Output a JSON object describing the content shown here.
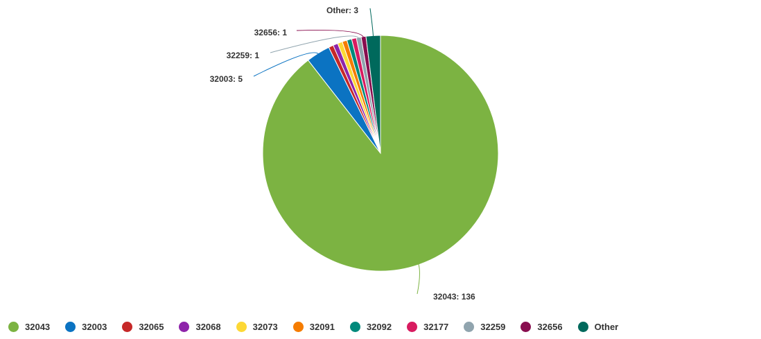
{
  "chart_data": {
    "type": "pie",
    "slices": [
      {
        "label": "32043",
        "value": 136,
        "color": "#7cb342",
        "data_label": "32043: 136"
      },
      {
        "label": "32003",
        "value": 5,
        "color": "#0b73c2",
        "data_label": "32003: 5"
      },
      {
        "label": "32065",
        "value": 1,
        "color": "#c62828",
        "data_label": ""
      },
      {
        "label": "32068",
        "value": 1,
        "color": "#8e24aa",
        "data_label": ""
      },
      {
        "label": "32073",
        "value": 1,
        "color": "#fdd835",
        "data_label": ""
      },
      {
        "label": "32091",
        "value": 1,
        "color": "#f57c00",
        "data_label": ""
      },
      {
        "label": "32092",
        "value": 1,
        "color": "#00897b",
        "data_label": ""
      },
      {
        "label": "32177",
        "value": 1,
        "color": "#d81b60",
        "data_label": ""
      },
      {
        "label": "32259",
        "value": 1,
        "color": "#90a4ae",
        "data_label": "32259: 1"
      },
      {
        "label": "32656",
        "value": 1,
        "color": "#880e4f",
        "data_label": "32656: 1"
      },
      {
        "label": "Other",
        "value": 3,
        "color": "#00695c",
        "data_label": "Other: 3"
      }
    ],
    "legend_position": "bottom"
  }
}
